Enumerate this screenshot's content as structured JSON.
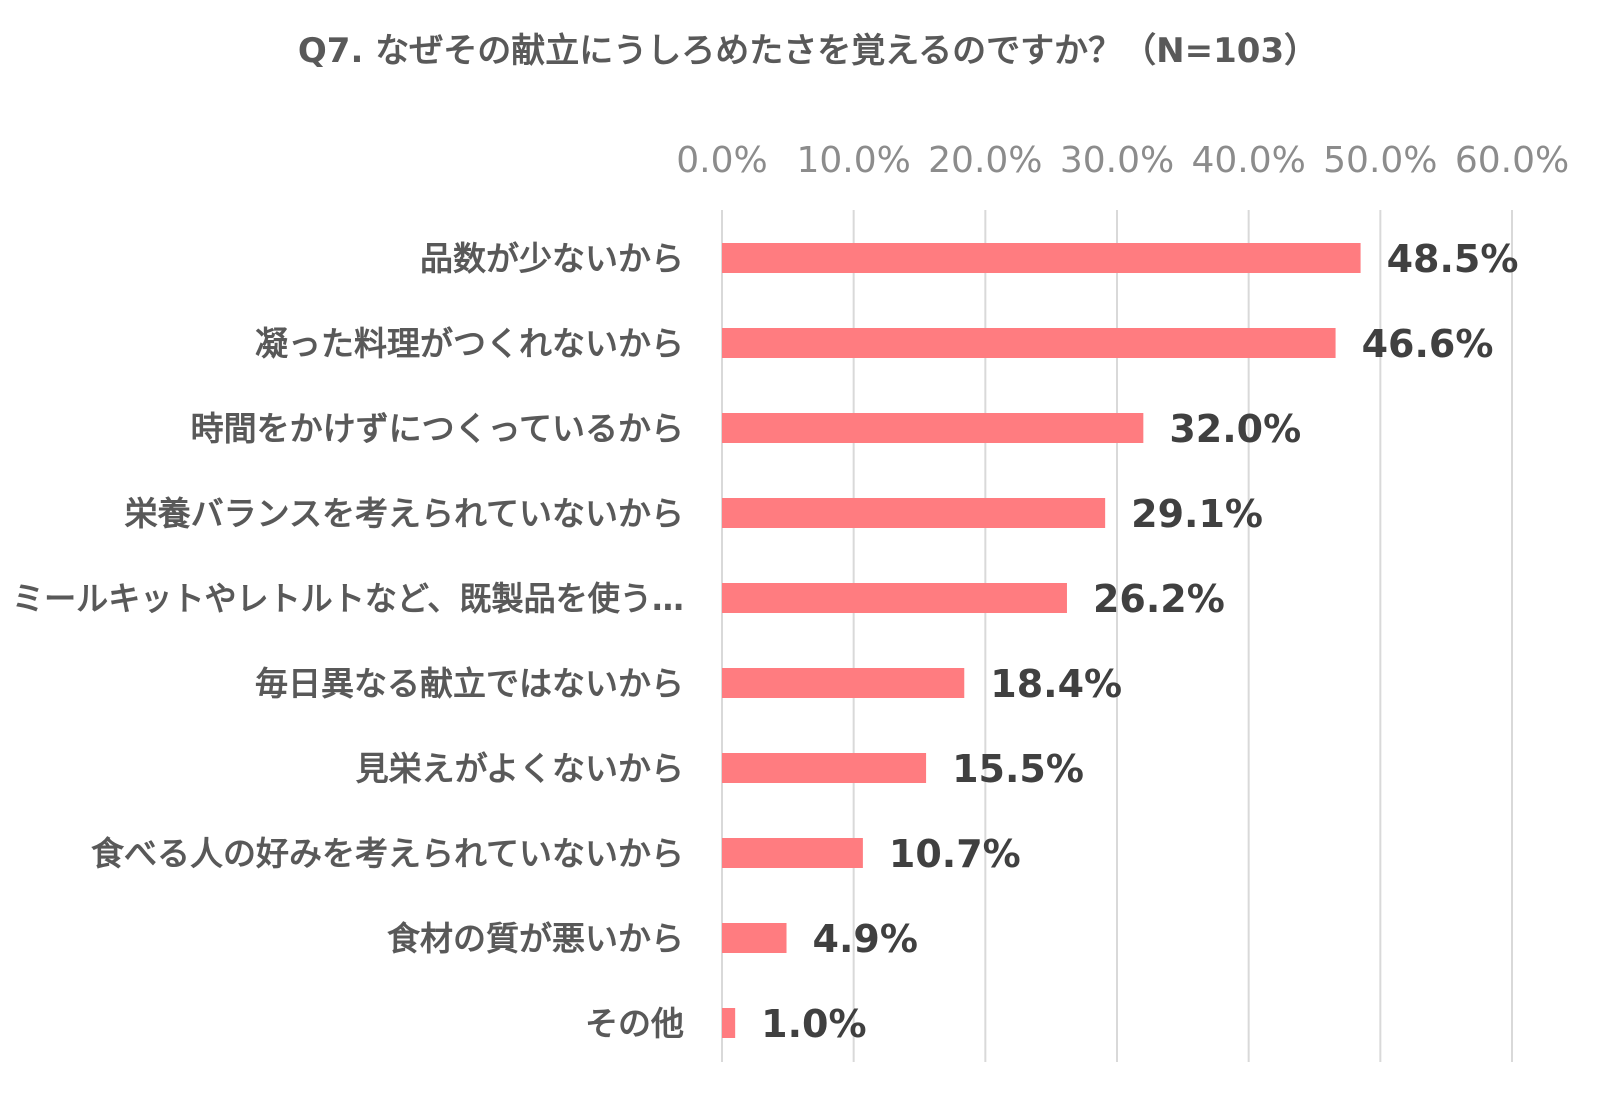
{
  "chart_data": {
    "type": "bar",
    "orientation": "horizontal",
    "title": "Q7. なぜその献立にうしろめたさを覚えるのですか？（N=103）",
    "categories": [
      "品数が少ないから",
      "凝った料理がつくれないから",
      "時間をかけずにつくっているから",
      "栄養バランスを考えられていないから",
      "ミールキットやレトルトなど、既製品を使う…",
      "毎日異なる献立ではないから",
      "見栄えがよくないから",
      "食べる人の好みを考えられていないから",
      "食材の質が悪いから",
      "その他"
    ],
    "values": [
      48.5,
      46.6,
      32.0,
      29.1,
      26.2,
      18.4,
      15.5,
      10.7,
      4.9,
      1.0
    ],
    "value_labels": [
      "48.5%",
      "46.6%",
      "32.0%",
      "29.1%",
      "26.2%",
      "18.4%",
      "15.5%",
      "10.7%",
      "4.9%",
      "1.0%"
    ],
    "xlim": [
      0,
      60
    ],
    "x_ticks": [
      0,
      10,
      20,
      30,
      40,
      50,
      60
    ],
    "x_tick_labels": [
      "0.0%",
      "10.0%",
      "20.0%",
      "30.0%",
      "40.0%",
      "50.0%",
      "60.0%"
    ],
    "x_axis_position": "top",
    "grid": true,
    "legend": "none",
    "bar_color": "#ff7c80",
    "grid_color": "#d9d9d9"
  }
}
